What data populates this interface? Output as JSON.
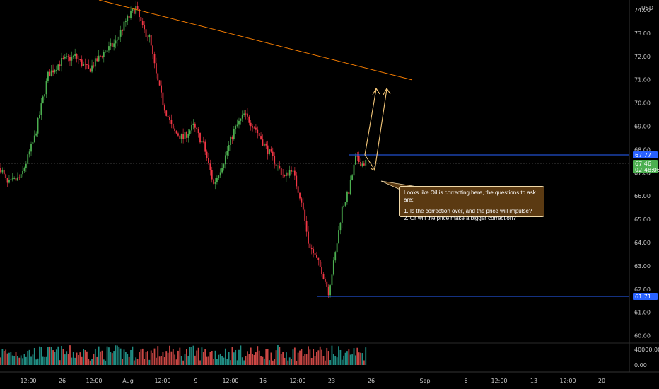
{
  "currency": "USD",
  "price_axis": {
    "ticks": [
      "74.00",
      "73.00",
      "72.00",
      "71.00",
      "70.00",
      "69.00",
      "68.00",
      "67.00",
      "66.00",
      "65.00",
      "64.00",
      "63.00",
      "62.00",
      "61.00",
      "60.00"
    ]
  },
  "badges": {
    "upper_line": "67.77",
    "current_price": "67.46",
    "countdown": "02:48:06",
    "lower_line": "61.71"
  },
  "volume_axis": {
    "ticks": [
      "40000.00",
      "0.00"
    ]
  },
  "time_axis": {
    "ticks": [
      "12:00",
      "26",
      "12:00",
      "Aug",
      "12:00",
      "9",
      "12:00",
      "16",
      "12:00",
      "23",
      "26",
      "Sep",
      "6",
      "12:00",
      "13",
      "12:00",
      "20"
    ]
  },
  "note": {
    "line1": "Looks like Oil is correcting here, the questions to ask are:",
    "line2": "1. Is the correction over, and the price will impulse?",
    "line3": "2. Or will the price make a bigger correction?"
  },
  "colors": {
    "up": "#26a69a",
    "down": "#ef5350",
    "candle_up": "#4caf50",
    "candle_down": "#f23645",
    "level_line": "#2962ff",
    "trend_line": "#f57c00",
    "arrow": "#f7c97a",
    "callout_bg": "#5b3a12"
  },
  "chart_data": {
    "type": "candlestick",
    "instrument_price_range": [
      60,
      74.3
    ],
    "levels": [
      67.77,
      61.71
    ],
    "current_price": 67.46,
    "trendline": {
      "from_price": 74.3,
      "to_price": 71.05
    },
    "key_path": [
      [
        0,
        67.2
      ],
      [
        4,
        66.5
      ],
      [
        12,
        66.8
      ],
      [
        20,
        68.5
      ],
      [
        28,
        71.2
      ],
      [
        36,
        71.8
      ],
      [
        44,
        72.0
      ],
      [
        52,
        71.4
      ],
      [
        60,
        72.1
      ],
      [
        68,
        72.6
      ],
      [
        74,
        73.5
      ],
      [
        80,
        74.1
      ],
      [
        84,
        73.2
      ],
      [
        88,
        72.8
      ],
      [
        92,
        71.2
      ],
      [
        96,
        70.0
      ],
      [
        102,
        68.8
      ],
      [
        108,
        68.5
      ],
      [
        114,
        69.0
      ],
      [
        120,
        68.2
      ],
      [
        126,
        66.5
      ],
      [
        132,
        67.5
      ],
      [
        138,
        68.8
      ],
      [
        144,
        69.5
      ],
      [
        150,
        69.0
      ],
      [
        156,
        68.2
      ],
      [
        162,
        67.5
      ],
      [
        168,
        66.8
      ],
      [
        172,
        67.2
      ],
      [
        178,
        65.8
      ],
      [
        182,
        64.0
      ],
      [
        186,
        63.4
      ],
      [
        190,
        62.8
      ],
      [
        194,
        61.9
      ],
      [
        198,
        63.5
      ],
      [
        202,
        65.5
      ],
      [
        206,
        66.2
      ],
      [
        210,
        67.6
      ],
      [
        214,
        67.4
      ],
      [
        216,
        67.46
      ]
    ]
  }
}
